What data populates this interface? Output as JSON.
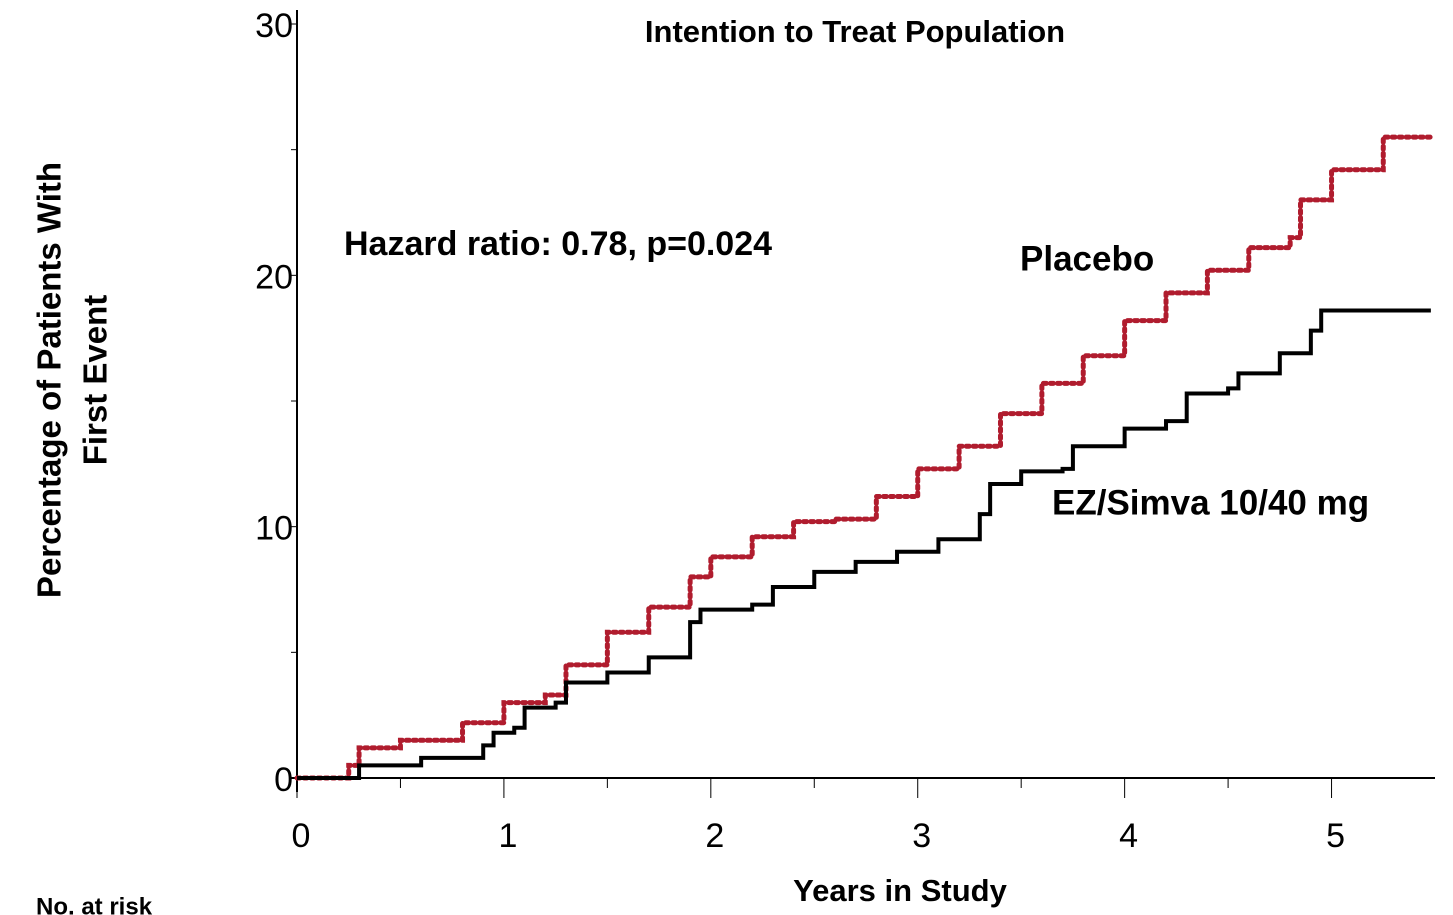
{
  "chart_data": {
    "type": "step",
    "title": "Intention to Treat Population",
    "y_label": [
      "Percentage of Patients With",
      "First Event"
    ],
    "x_label": "Years in Study",
    "annotation": "Hazard ratio:  0.78,  p=0.024",
    "footer": "No. at risk",
    "xlim": [
      0,
      5.5
    ],
    "ylim": [
      0,
      30
    ],
    "xticks": [
      0,
      1,
      2,
      3,
      4,
      5
    ],
    "yticks": [
      0,
      10,
      20,
      30
    ],
    "x_minor_ticks": [
      0.5,
      1.5,
      2.5,
      3.5,
      4.5
    ],
    "y_minor_ticks": [
      5,
      15,
      25
    ],
    "series": [
      {
        "name": "Placebo",
        "color": "#b01c2e",
        "dashed": true,
        "x": [
          0,
          0.25,
          0.3,
          0.5,
          0.8,
          1,
          1.2,
          1.3,
          1.5,
          1.7,
          1.9,
          2,
          2.2,
          2.4,
          2.6,
          2.8,
          3,
          3.2,
          3.4,
          3.6,
          3.8,
          4,
          4.2,
          4.4,
          4.6,
          4.8,
          4.85,
          5,
          5.25,
          5.48
        ],
        "values": [
          0,
          0.5,
          1.2,
          1.5,
          2.2,
          3,
          3.3,
          4.5,
          5.8,
          6.8,
          8,
          8.8,
          9.6,
          10.2,
          10.3,
          11.2,
          12.3,
          13.2,
          14.5,
          15.7,
          16.8,
          18.2,
          19.3,
          20.2,
          21.1,
          21.5,
          23,
          24.2,
          25.5,
          25.6
        ]
      },
      {
        "name": "EZ/Simva 10/40 mg",
        "color": "#000000",
        "dashed": false,
        "x": [
          0,
          0.3,
          0.6,
          0.9,
          0.95,
          1.05,
          1.1,
          1.25,
          1.3,
          1.5,
          1.7,
          1.9,
          1.95,
          2.2,
          2.3,
          2.5,
          2.7,
          2.9,
          3.1,
          3.3,
          3.35,
          3.5,
          3.7,
          3.75,
          4,
          4.2,
          4.3,
          4.5,
          4.55,
          4.75,
          4.9,
          4.95,
          5.48
        ],
        "values": [
          0,
          0.5,
          0.8,
          1.3,
          1.8,
          2,
          2.8,
          3,
          3.8,
          4.2,
          4.8,
          6.2,
          6.7,
          6.9,
          7.6,
          8.2,
          8.6,
          9,
          9.5,
          10.5,
          11.7,
          12.2,
          12.3,
          13.2,
          13.9,
          14.2,
          15.3,
          15.5,
          16.1,
          16.9,
          17.8,
          18.6,
          18.6
        ]
      }
    ]
  }
}
